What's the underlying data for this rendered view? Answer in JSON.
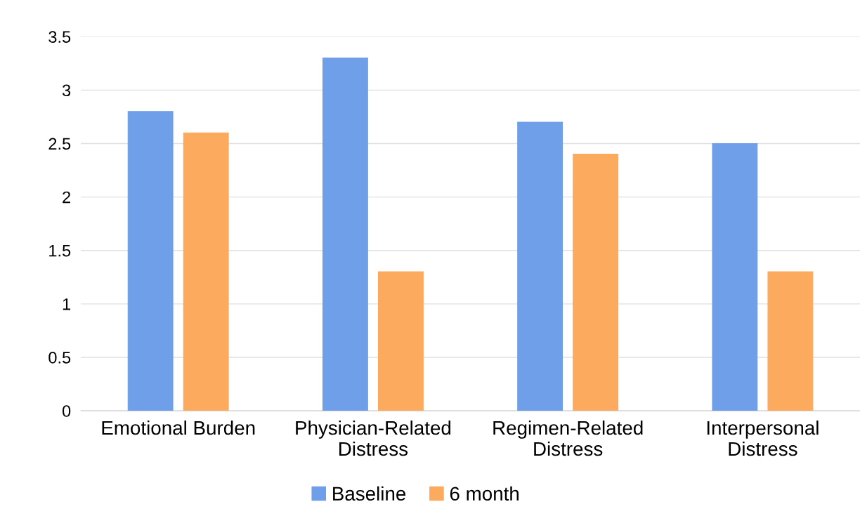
{
  "chart_data": {
    "type": "bar",
    "categories": [
      "Emotional Burden",
      "Physician-Related\nDistress",
      "Regimen-Related\nDistress",
      "Interpersonal\nDistress"
    ],
    "series": [
      {
        "name": "Baseline",
        "color": "#6f9fe8",
        "values": [
          2.8,
          3.3,
          2.7,
          2.5
        ]
      },
      {
        "name": "6 month",
        "color": "#fcaa5e",
        "values": [
          2.6,
          1.3,
          2.4,
          1.3
        ]
      }
    ],
    "ylim": [
      0,
      3.5
    ],
    "yticks": [
      0,
      0.5,
      1,
      1.5,
      2,
      2.5,
      3,
      3.5
    ],
    "grid": "y",
    "legend": "bottom"
  }
}
